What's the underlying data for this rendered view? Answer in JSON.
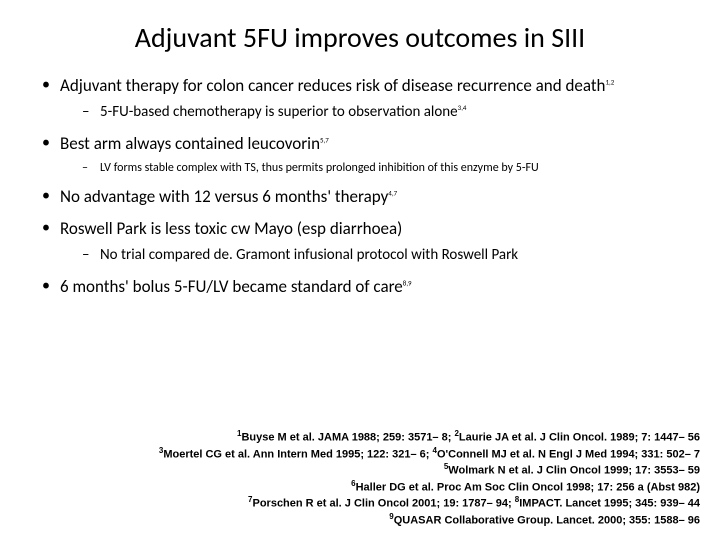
{
  "title": "Adjuvant 5FU improves outcomes in SIII",
  "bullets": [
    {
      "text": "Adjuvant therapy for colon cancer reduces risk of disease recurrence and death",
      "sup": "1,2",
      "sub": [
        {
          "text": "5-FU-based chemotherapy is superior to observation alone",
          "sup": "3,4",
          "small": false
        }
      ]
    },
    {
      "text": "Best arm always contained leucovorin",
      "sup": "5,7",
      "sub": [
        {
          "text": "LV forms stable complex with TS, thus permits prolonged inhibition of this enzyme by 5-FU",
          "sup": "",
          "small": true
        }
      ]
    },
    {
      "text": "No advantage with 12 versus 6 months' therapy",
      "sup": "4,7",
      "sub": []
    },
    {
      "text": "Roswell Park is less toxic cw Mayo (esp diarrhoea)",
      "sup": "",
      "sub": [
        {
          "text": "No trial compared de. Gramont infusional protocol with Roswell Park",
          "sup": "",
          "small": false
        }
      ]
    },
    {
      "text": "6 months' bolus 5-FU/LV became standard of care",
      "sup": "8,9",
      "sub": []
    }
  ],
  "refs": {
    "l1a": "Buyse M et al. JAMA 1988; 259: 3571– 8; ",
    "l1b": "Laurie JA et al. J Clin Oncol. 1989; 7: 1447– 56",
    "l2a": "Moertel CG et al. Ann Intern Med 1995; 122: 321– 6; ",
    "l2b": "O'Connell MJ et al. N Engl J Med 1994; 331: 502– 7",
    "l3": "Wolmark N et al. J Clin Oncol 1999; 17: 3553– 59",
    "l4": "Haller DG et al. Proc Am Soc Clin Oncol 1998; 17: 256 a (Abst 982)",
    "l5a": "Porschen R et al. J Clin Oncol 2001; 19: 1787– 94; ",
    "l5b": "IMPACT. Lancet 1995; 345: 939– 44",
    "l6": "QUASAR Collaborative Group. Lancet. 2000; 355: 1588– 96"
  },
  "colors": {
    "bg": "#ffffff",
    "text": "#000000"
  }
}
